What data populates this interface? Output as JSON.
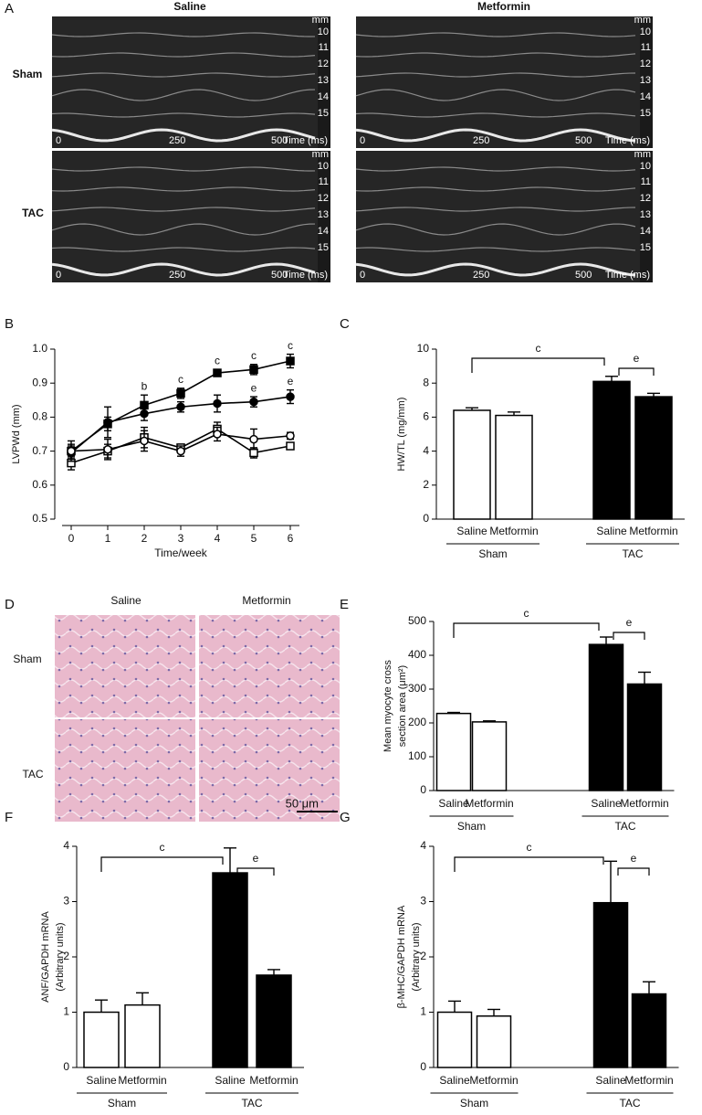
{
  "panel_a": {
    "label": "A",
    "columns": [
      "Saline",
      "Metformin"
    ],
    "rows": [
      "Sham",
      "TAC"
    ],
    "depth_labels": [
      "mm",
      "10",
      "11",
      "12",
      "13",
      "14",
      "15"
    ],
    "time_labels": [
      "0",
      "250",
      "500",
      "Time (ms)"
    ]
  },
  "panel_d": {
    "label": "D",
    "columns": [
      "Saline",
      "Metformin"
    ],
    "rows": [
      "Sham",
      "TAC"
    ],
    "scale_bar": "50 μm"
  },
  "chart_data": [
    {
      "type": "line",
      "panel": "B",
      "xlabel": "Time/week",
      "ylabel": "LVPWd (mm)",
      "x": [
        0,
        1,
        2,
        3,
        4,
        5,
        6
      ],
      "xlim": [
        0,
        6
      ],
      "xticks": [
        0,
        1,
        2,
        3,
        4,
        5,
        6
      ],
      "ylim": [
        0.5,
        1
      ],
      "yticks": [
        0.5,
        0.6,
        0.7,
        0.8,
        0.9,
        {
          "value": 1,
          "label": "1.0"
        }
      ],
      "series": [
        {
          "marker": "square",
          "filled": true,
          "values": [
            0.7,
            0.78,
            0.835,
            0.87,
            0.93,
            0.94,
            0.965
          ],
          "errors": [
            0.02,
            0.02,
            0.03,
            0.015,
            0.01,
            0.015,
            0.02
          ]
        },
        {
          "marker": "circle",
          "filled": true,
          "values": [
            0.695,
            0.785,
            0.81,
            0.83,
            0.84,
            0.845,
            0.86
          ],
          "errors": [
            0.02,
            0.045,
            0.02,
            0.015,
            0.025,
            0.015,
            0.02
          ]
        },
        {
          "marker": "square",
          "filled": false,
          "values": [
            0.665,
            0.7,
            0.74,
            0.71,
            0.765,
            0.695,
            0.715
          ],
          "errors": [
            0.02,
            0.02,
            0.03,
            0.01,
            0.02,
            0.015,
            0.01
          ]
        },
        {
          "marker": "circle",
          "filled": false,
          "values": [
            0.7,
            0.705,
            0.73,
            0.7,
            0.75,
            0.735,
            0.745
          ],
          "errors": [
            0.03,
            0.03,
            0.03,
            0.015,
            0.02,
            0.03,
            0.01
          ]
        }
      ],
      "annotations": [
        {
          "text": "b",
          "x": 2,
          "series": 0
        },
        {
          "text": "c",
          "x": 3,
          "series": 0
        },
        {
          "text": "c",
          "x": 4,
          "series": 0
        },
        {
          "text": "c",
          "x": 5,
          "series": 0
        },
        {
          "text": "c",
          "x": 6,
          "series": 0
        },
        {
          "text": "e",
          "x": 5,
          "series": 1
        },
        {
          "text": "e",
          "x": 6,
          "series": 1
        }
      ]
    },
    {
      "type": "bar",
      "panel": "C",
      "ylabel": [
        "HW/TL (mg/mm)"
      ],
      "categories": [
        "Saline",
        "Metformin",
        "Saline",
        "Metformin"
      ],
      "groups": [
        "Sham",
        "TAC"
      ],
      "colors": [
        "#ffffff",
        "#ffffff",
        "#000000",
        "#000000"
      ],
      "values": [
        6.4,
        6.1,
        8.1,
        7.2
      ],
      "errors": [
        0.15,
        0.2,
        0.3,
        0.2
      ],
      "ylim": [
        0,
        10
      ],
      "yticks": [
        0,
        2,
        4,
        6,
        8,
        10
      ],
      "brackets": [
        {
          "text": "c",
          "from": 0,
          "to": 2
        },
        {
          "text": "e",
          "from": 2,
          "to": 3
        }
      ]
    },
    {
      "type": "bar",
      "panel": "E",
      "ylabel": [
        "Mean myocyte cross",
        "section area (μm²)"
      ],
      "categories": [
        "Saline",
        "Metformin",
        "Saline",
        "Metformin"
      ],
      "groups": [
        "Sham",
        "TAC"
      ],
      "colors": [
        "#ffffff",
        "#ffffff",
        "#000000",
        "#000000"
      ],
      "values": [
        228,
        203,
        432,
        315
      ],
      "errors": [
        3,
        3,
        22,
        35
      ],
      "ylim": [
        0,
        500
      ],
      "yticks": [
        0,
        100,
        200,
        300,
        400,
        500
      ],
      "brackets": [
        {
          "text": "c",
          "from": 0,
          "to": 2
        },
        {
          "text": "e",
          "from": 2,
          "to": 3
        }
      ]
    },
    {
      "type": "bar",
      "panel": "F",
      "ylabel": [
        "ANF/GAPDH mRNA",
        "(Arbitrary units)"
      ],
      "categories": [
        "Saline",
        "Metformin",
        "Saline",
        "Metformin"
      ],
      "groups": [
        "Sham",
        "TAC"
      ],
      "colors": [
        "#ffffff",
        "#ffffff",
        "#000000",
        "#000000"
      ],
      "values": [
        1.0,
        1.13,
        3.52,
        1.67
      ],
      "errors": [
        0.22,
        0.22,
        0.45,
        0.1
      ],
      "ylim": [
        0,
        4
      ],
      "yticks": [
        0,
        1,
        2,
        3,
        4
      ],
      "brackets": [
        {
          "text": "c",
          "from": 0,
          "to": 2
        },
        {
          "text": "e",
          "from": 2,
          "to": 3
        }
      ]
    },
    {
      "type": "bar",
      "panel": "G",
      "ylabel": [
        "β-MHC/GAPDH mRNA",
        "(Arbitrary units)"
      ],
      "categories": [
        "Saline",
        "Metformin",
        "Saline",
        "Metformin"
      ],
      "groups": [
        "Sham",
        "TAC"
      ],
      "colors": [
        "#ffffff",
        "#ffffff",
        "#000000",
        "#000000"
      ],
      "values": [
        1.0,
        0.93,
        2.98,
        1.33
      ],
      "errors": [
        0.2,
        0.12,
        0.75,
        0.22
      ],
      "ylim": [
        0,
        4
      ],
      "yticks": [
        0,
        1,
        2,
        3,
        4
      ],
      "brackets": [
        {
          "text": "c",
          "from": 0,
          "to": 2
        },
        {
          "text": "e",
          "from": 2,
          "to": 3
        }
      ]
    }
  ]
}
